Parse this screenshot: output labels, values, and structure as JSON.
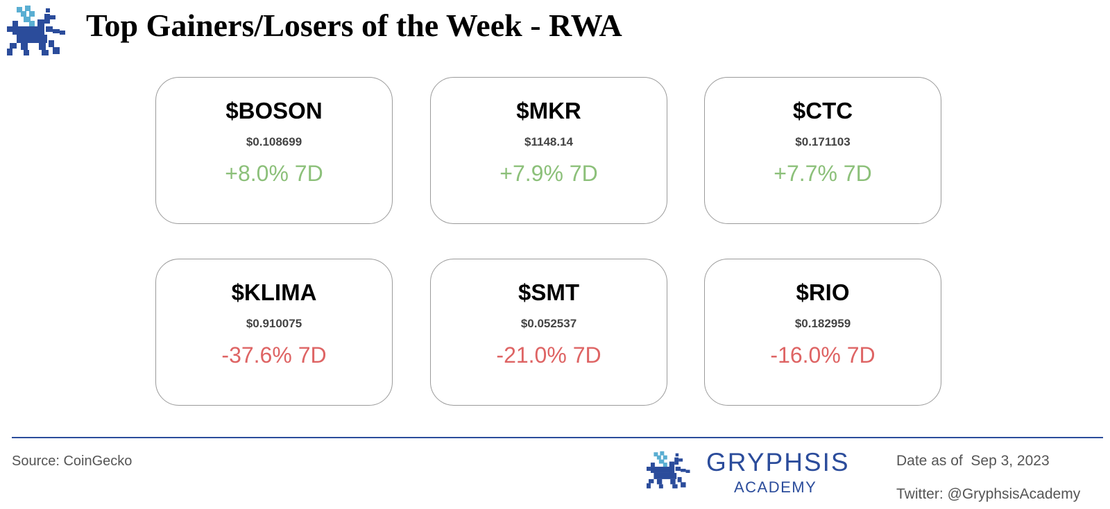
{
  "header": {
    "title": "Top Gainers/Losers of the Week - RWA",
    "logo_icon": "gryphon-icon"
  },
  "colors": {
    "gain": "#8cc07a",
    "loss": "#de6464",
    "brand": "#2b4c9b",
    "brand_light": "#5aaed2"
  },
  "gainers": [
    {
      "ticker": "$BOSON",
      "price": "$0.108699",
      "change": "+8.0% 7D"
    },
    {
      "ticker": "$MKR",
      "price": "$1148.14",
      "change": "+7.9% 7D"
    },
    {
      "ticker": "$CTC",
      "price": "$0.171103",
      "change": "+7.7% 7D"
    }
  ],
  "losers": [
    {
      "ticker": "$KLIMA",
      "price": "$0.910075",
      "change": "-37.6% 7D"
    },
    {
      "ticker": "$SMT",
      "price": "$0.052537",
      "change": "-21.0% 7D"
    },
    {
      "ticker": "$RIO",
      "price": "$0.182959",
      "change": "-16.0% 7D"
    }
  ],
  "footer": {
    "source": "Source: CoinGecko",
    "brand_name": "GRYPHSIS",
    "brand_sub": "ACADEMY",
    "date": "Date as of  Sep 3, 2023",
    "twitter": "Twitter: @GryphsisAcademy"
  }
}
